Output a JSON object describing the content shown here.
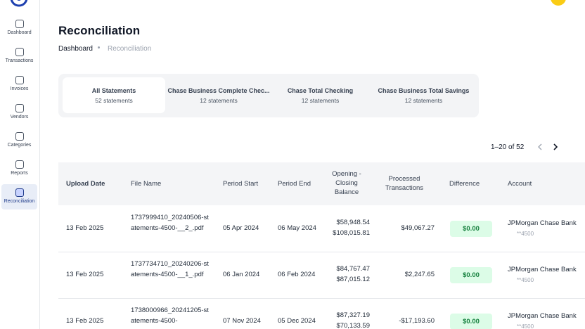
{
  "nav": [
    "Dashboard",
    "Transactions",
    "Invoices",
    "Vendors",
    "Categories",
    "Reports",
    "Reconciliation"
  ],
  "header": {
    "title": "Reconciliation",
    "breadcrumb": [
      "Dashboard",
      "Reconciliation"
    ]
  },
  "tabs": [
    {
      "label": "All Statements",
      "count": "52 statements"
    },
    {
      "label": "Chase Business Complete Chec...",
      "count": "12 statements"
    },
    {
      "label": "Chase Total Checking",
      "count": "12 statements"
    },
    {
      "label": "Chase Business Total Savings",
      "count": "12 statements"
    }
  ],
  "pagination": "1–20 of 52",
  "table": {
    "headers": [
      "Upload Date",
      "File Name",
      "Period Start",
      "Period End",
      "Opening - Closing Balance",
      "Processed Transactions",
      "Difference",
      "Account"
    ],
    "rows": [
      [
        "13 Feb 2025",
        "1737999410_20240506-statements-4500-__2_.pdf",
        "05 Apr 2024",
        "06 May 2024",
        "$58,948.54",
        "$108,015.81",
        "$49,067.27",
        "$0.00",
        "JPMorgan Chase Bank",
        "**4500"
      ],
      [
        "13 Feb 2025",
        "1737734710_20240206-statements-4500-__1_.pdf",
        "06 Jan 2024",
        "06 Feb 2024",
        "$84,767.47",
        "$87,015.12",
        "$2,247.65",
        "$0.00",
        "JPMorgan Chase Bank",
        "**4500"
      ],
      [
        "13 Feb 2025",
        "1738000966_20241205-statements-4500-",
        "07 Nov 2024",
        "05 Dec 2024",
        "$87,327.19",
        "$70,133.59",
        "-$17,193.60",
        "$0.00",
        "JPMorgan Chase Bank",
        "**4500"
      ]
    ]
  }
}
